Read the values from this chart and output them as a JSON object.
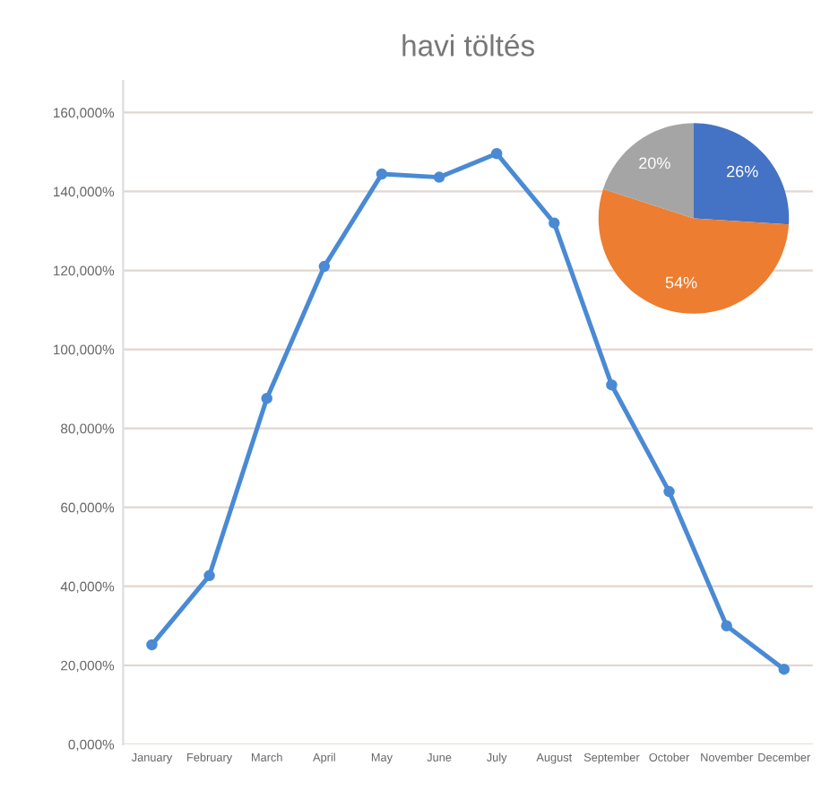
{
  "chart_data": [
    {
      "type": "line",
      "title": "havi töltés",
      "categories": [
        "January",
        "February",
        "March",
        "April",
        "May",
        "June",
        "July",
        "August",
        "September",
        "October",
        "November",
        "December"
      ],
      "series": [
        {
          "color": "#4a8ad4",
          "values": [
            25200,
            42700,
            87600,
            121000,
            144400,
            143600,
            149600,
            132000,
            91000,
            64000,
            30000,
            19000
          ]
        }
      ],
      "ylim": [
        0,
        168000
      ],
      "yticks": [
        {
          "value": 0,
          "label": "0,000%"
        },
        {
          "value": 20000,
          "label": "20,000%"
        },
        {
          "value": 40000,
          "label": "40,000%"
        },
        {
          "value": 60000,
          "label": "60,000%"
        },
        {
          "value": 80000,
          "label": "80,000%"
        },
        {
          "value": 100000,
          "label": "100,000%"
        },
        {
          "value": 120000,
          "label": "120,000%"
        },
        {
          "value": 140000,
          "label": "140,000%"
        },
        {
          "value": 160000,
          "label": "160,000%"
        }
      ],
      "grid": "y",
      "marker": "circle",
      "line_style": "solid"
    },
    {
      "type": "pie",
      "categories": [
        null,
        null,
        null
      ],
      "values": [
        26,
        54,
        20
      ],
      "colors": [
        "#4472c4",
        "#ed7d31",
        "#a5a5a5"
      ],
      "value_labels": [
        "26%",
        "54%",
        "20%"
      ]
    }
  ]
}
